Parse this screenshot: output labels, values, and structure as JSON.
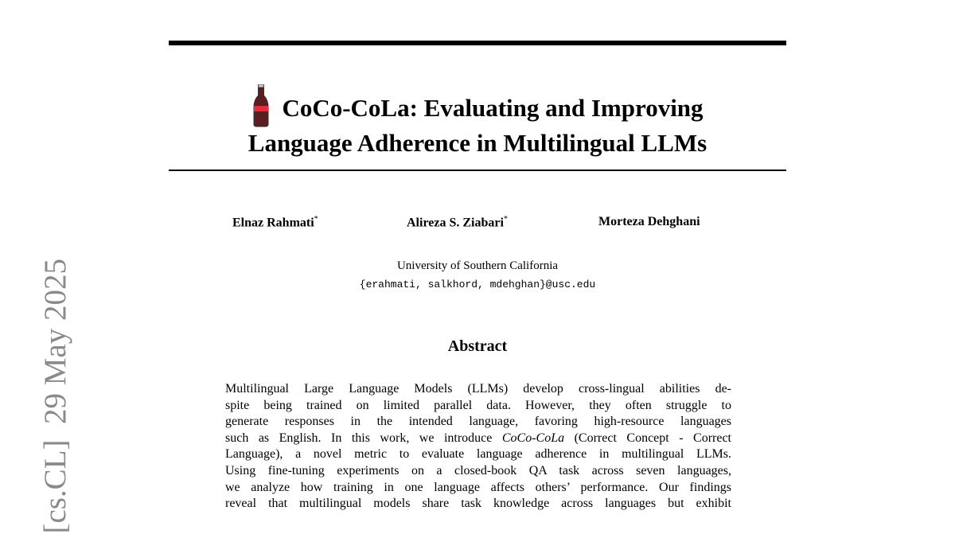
{
  "paper": {
    "title_line1": "CoCo-CoLa: Evaluating and Improving",
    "title_line2": "Language Adherence in Multilingual LLMs",
    "authors": [
      {
        "name": "Elnaz Rahmati",
        "mark": "*"
      },
      {
        "name": "Alireza S. Ziabari",
        "mark": "*"
      },
      {
        "name": "Morteza Dehghani",
        "mark": ""
      }
    ],
    "affiliation": "University of Southern California",
    "email": "{erahmati, salkhord, mdehghan}@usc.edu",
    "abstract_heading": "Abstract",
    "abstract_lines": [
      "Multilingual Large Language Models (LLMs) develop cross-lingual abilities de-",
      "spite being trained on limited parallel data.  However, they often struggle to",
      "generate responses in the intended language, favoring high-resource languages",
      "such as English. In this work, we introduce |CoCo-CoLa| (Correct Concept - Correct",
      "Language), a novel metric to evaluate language adherence in multilingual LLMs.",
      "Using fine-tuning experiments on a closed-book QA task across seven languages,",
      "we analyze how training in one language affects others’ performance. Our findings",
      "reveal that multilingual models share task knowledge across languages but exhibit"
    ],
    "arxiv_stamp": "[cs.CL]  29 May 2025",
    "icon": "soda-bottle-icon",
    "colors": {
      "bottle_red": "#e0303c",
      "bottle_body": "#5a1e22",
      "stamp_gray": "#8a8a8a"
    }
  }
}
